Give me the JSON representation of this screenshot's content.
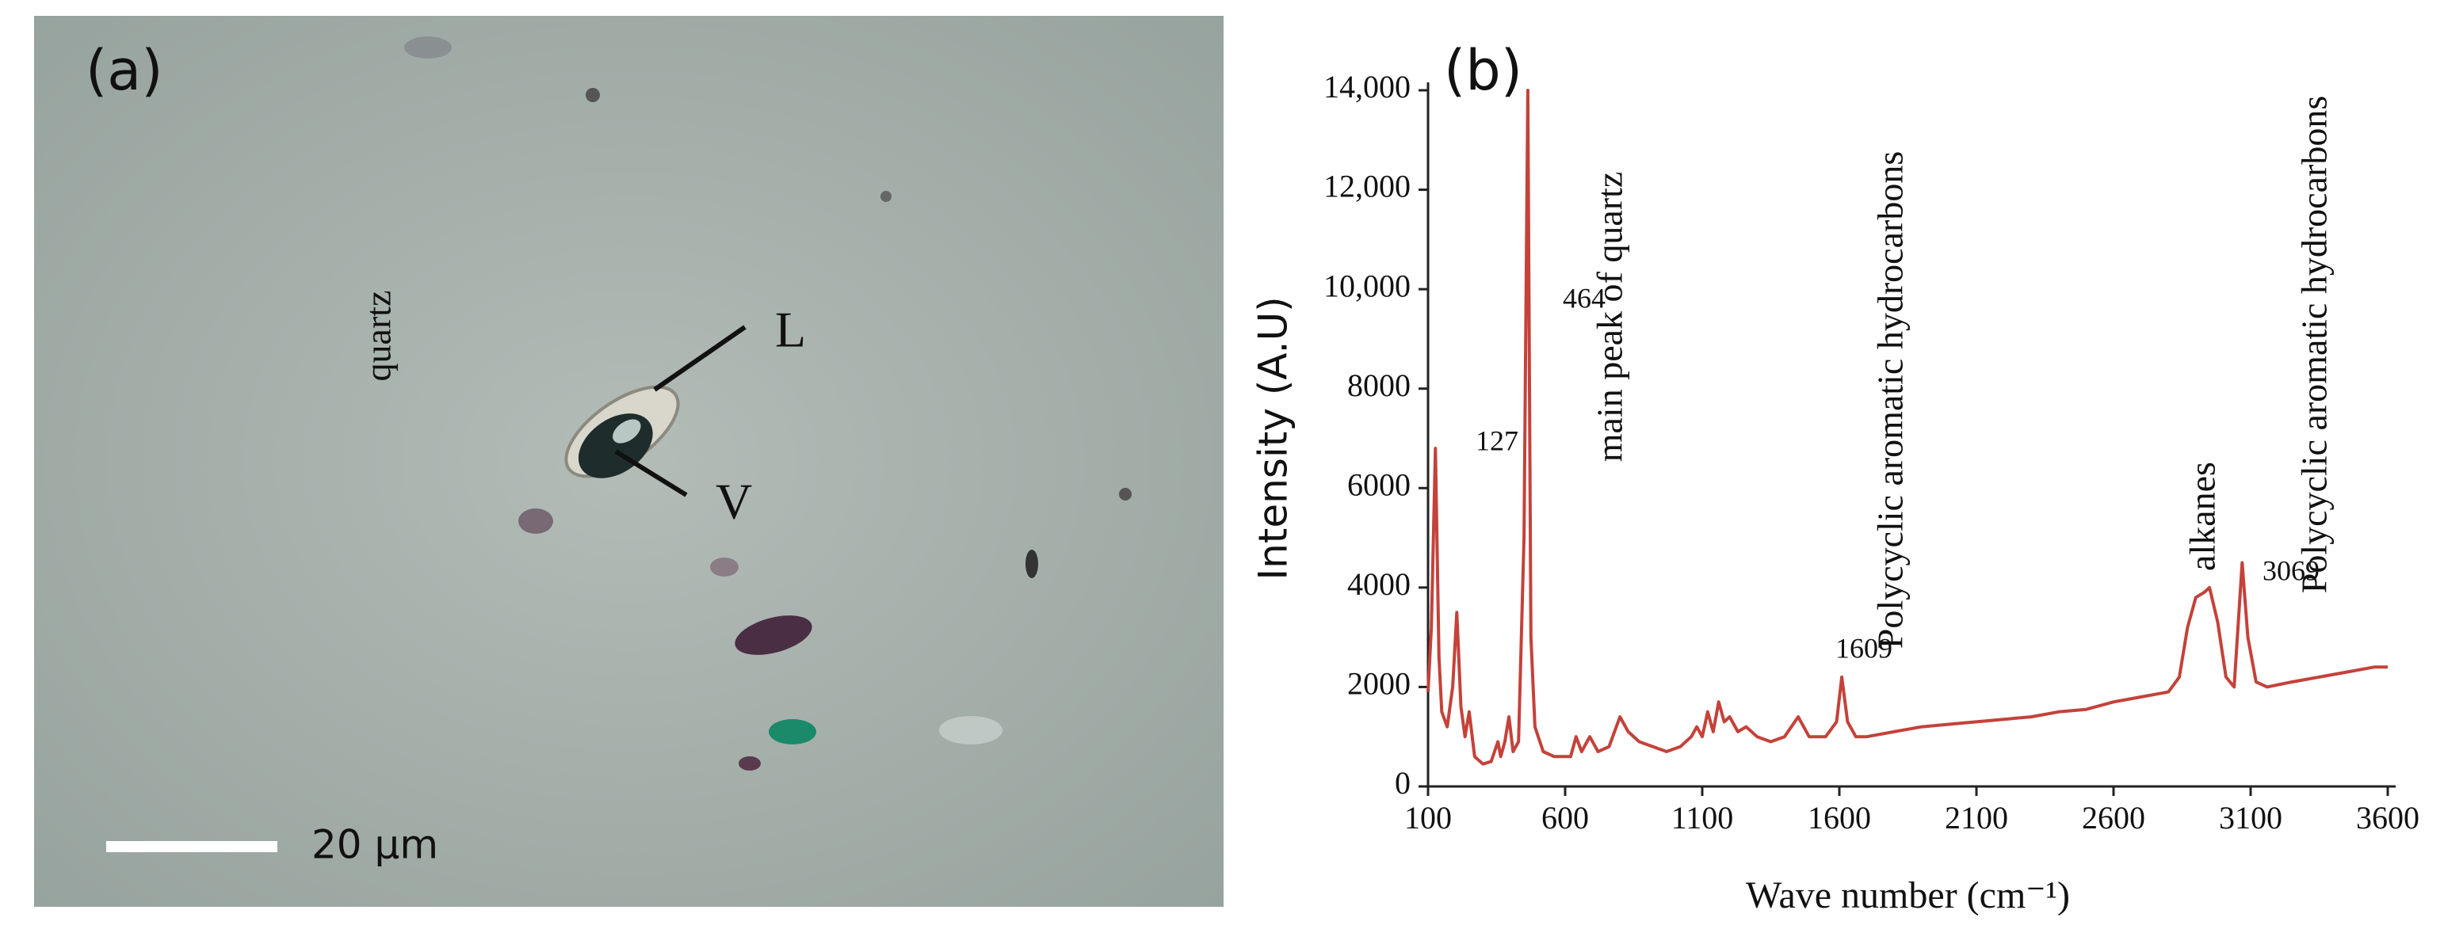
{
  "image_panel": {
    "panel_label": "(a)",
    "label_l": "L",
    "label_v": "V",
    "scale_bar": "20 µm"
  },
  "chart_data": {
    "type": "line",
    "panel_label": "(b)",
    "x_label": "Wave number (cm⁻¹)",
    "y_label": "Intensity (A.U)",
    "color": "#c4423a",
    "xlim": [
      100,
      3600
    ],
    "xticks": [
      100,
      600,
      1100,
      1600,
      2100,
      2600,
      3100,
      3600
    ],
    "ylim": [
      0,
      14000
    ],
    "yticks": [
      0,
      2000,
      4000,
      6000,
      8000,
      {
        "value": 10000,
        "label": "10,000"
      },
      {
        "value": 12000,
        "label": "12,000"
      },
      {
        "value": 14000,
        "label": "14,000"
      }
    ],
    "annotations": [
      "quartz",
      "127",
      "464",
      "main peak of quartz",
      "1609",
      "Polycyclic aromatic hydrocarbons",
      "alkanes",
      "3069",
      "Polycyclic aromatic hydrocarbons"
    ],
    "x": [
      100,
      112,
      127,
      140,
      150,
      170,
      190,
      205,
      220,
      235,
      250,
      270,
      300,
      330,
      355,
      365,
      380,
      395,
      410,
      430,
      450,
      464,
      475,
      490,
      520,
      560,
      620,
      640,
      660,
      690,
      720,
      760,
      800,
      830,
      870,
      920,
      970,
      1020,
      1060,
      1080,
      1100,
      1120,
      1140,
      1160,
      1180,
      1200,
      1230,
      1260,
      1300,
      1350,
      1400,
      1450,
      1490,
      1550,
      1590,
      1609,
      1630,
      1660,
      1700,
      1800,
      1900,
      2000,
      2100,
      2200,
      2300,
      2400,
      2500,
      2600,
      2700,
      2800,
      2840,
      2870,
      2900,
      2930,
      2950,
      2980,
      3010,
      3040,
      3069,
      3090,
      3120,
      3160,
      3250,
      3350,
      3450,
      3550,
      3600
    ],
    "values": [
      1900,
      3200,
      6800,
      2600,
      1500,
      1200,
      2000,
      3500,
      1600,
      1000,
      1500,
      600,
      450,
      500,
      900,
      600,
      900,
      1400,
      700,
      900,
      5000,
      14000,
      3000,
      1200,
      700,
      600,
      600,
      1000,
      700,
      1000,
      700,
      800,
      1400,
      1100,
      900,
      800,
      700,
      800,
      1000,
      1200,
      1000,
      1500,
      1100,
      1700,
      1300,
      1400,
      1100,
      1200,
      1000,
      900,
      1000,
      1400,
      1000,
      1000,
      1300,
      2200,
      1300,
      1000,
      1000,
      1100,
      1200,
      1250,
      1300,
      1350,
      1400,
      1500,
      1550,
      1700,
      1800,
      1900,
      2200,
      3200,
      3800,
      3900,
      4000,
      3300,
      2200,
      2000,
      4500,
      3000,
      2100,
      2000,
      2100,
      2200,
      2300,
      2400,
      2400
    ]
  }
}
